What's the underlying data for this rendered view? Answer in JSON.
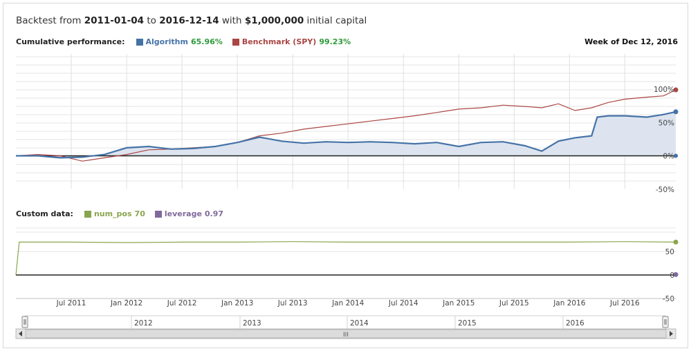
{
  "header": {
    "prefix": "Backtest from",
    "start": "2011-01-04",
    "to": "to",
    "end": "2016-12-14",
    "with": "with",
    "capital": "$1,000,000",
    "suffix": "initial capital"
  },
  "legend1": {
    "label": "Cumulative performance:",
    "algo_name": "Algorithm",
    "algo_value": "65.96%",
    "bench_name": "Benchmark (SPY)",
    "bench_value": "99.23%",
    "week": "Week of Dec 12, 2016"
  },
  "legend2": {
    "label": "Custom data:",
    "num_pos_name": "num_pos",
    "num_pos_value": "70",
    "leverage_name": "leverage",
    "leverage_value": "0.97"
  },
  "colors": {
    "algorithm": "#4572a7",
    "benchmark": "#aa4643",
    "num_pos": "#89a54e",
    "leverage": "#80699b",
    "positive": "#2e9a3a"
  },
  "navigator": {
    "years": [
      "2012",
      "2013",
      "2014",
      "2015",
      "2016"
    ],
    "scroll_grip": "III"
  },
  "chart_data": [
    {
      "type": "area",
      "title": "Cumulative performance",
      "y_ticks": [
        "100%",
        "50%",
        "0%",
        "-50%"
      ],
      "ylim": [
        -50,
        100
      ],
      "x_ticks": [
        "Jul 2011",
        "Jan 2012",
        "Jul 2012",
        "Jan 2013",
        "Jul 2013",
        "Jan 2014",
        "Jul 2014",
        "Jan 2015",
        "Jul 2015",
        "Jan 2016",
        "Jul 2016"
      ],
      "x_range": [
        "2011-01-04",
        "2016-12-14"
      ],
      "series": [
        {
          "name": "Algorithm",
          "x": [
            2011.0,
            2011.2,
            2011.4,
            2011.6,
            2011.8,
            2012.0,
            2012.2,
            2012.4,
            2012.6,
            2012.8,
            2013.0,
            2013.2,
            2013.4,
            2013.6,
            2013.8,
            2014.0,
            2014.2,
            2014.4,
            2014.6,
            2014.8,
            2015.0,
            2015.2,
            2015.4,
            2015.6,
            2015.75,
            2015.9,
            2016.05,
            2016.2,
            2016.25,
            2016.35,
            2016.5,
            2016.7,
            2016.85,
            2016.96
          ],
          "values": [
            0,
            0,
            -3,
            -2,
            2,
            12,
            14,
            10,
            11,
            14,
            20,
            28,
            22,
            19,
            21,
            20,
            21,
            20,
            18,
            20,
            14,
            20,
            21,
            15,
            7,
            22,
            27,
            30,
            58,
            60,
            60,
            58,
            62,
            66
          ]
        },
        {
          "name": "Benchmark (SPY)",
          "x": [
            2011.0,
            2011.2,
            2011.4,
            2011.6,
            2011.8,
            2012.0,
            2012.2,
            2012.4,
            2012.6,
            2012.8,
            2013.0,
            2013.2,
            2013.4,
            2013.6,
            2013.8,
            2014.0,
            2014.2,
            2014.4,
            2014.6,
            2014.8,
            2015.0,
            2015.2,
            2015.4,
            2015.6,
            2015.75,
            2015.9,
            2016.05,
            2016.2,
            2016.35,
            2016.5,
            2016.7,
            2016.85,
            2016.96
          ],
          "values": [
            0,
            2,
            0,
            -8,
            -3,
            2,
            9,
            10,
            12,
            14,
            20,
            30,
            34,
            40,
            44,
            48,
            52,
            56,
            60,
            65,
            70,
            72,
            76,
            74,
            72,
            78,
            68,
            72,
            80,
            85,
            88,
            90,
            99
          ]
        }
      ]
    },
    {
      "type": "line",
      "title": "Custom data",
      "y_ticks": [
        "50",
        "0",
        "-50"
      ],
      "ylim": [
        -50,
        100
      ],
      "series": [
        {
          "name": "num_pos",
          "x": [
            2011.0,
            2011.03,
            2011.5,
            2012.0,
            2012.5,
            2013.0,
            2013.5,
            2014.0,
            2014.5,
            2015.0,
            2015.5,
            2016.0,
            2016.5,
            2016.96
          ],
          "values": [
            0,
            70,
            70,
            69,
            70,
            70,
            71,
            70,
            70,
            70,
            70,
            70,
            71,
            70
          ]
        },
        {
          "name": "leverage",
          "x": [
            2011.0,
            2016.96
          ],
          "values": [
            0.97,
            0.97
          ]
        }
      ]
    }
  ]
}
